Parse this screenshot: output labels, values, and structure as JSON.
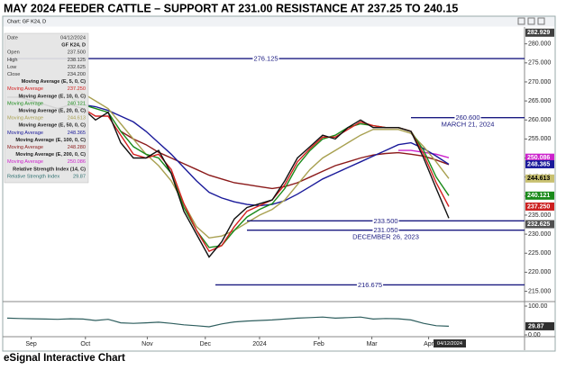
{
  "title": "MAY 2024 FEEDER CATTLE –  SUPPORT AT 231.00  RESISTANCE AT 237.25 TO 240.15",
  "footer": "eSignal Interactive Chart",
  "toolbar": "Chart: GF K24, D",
  "data_window": {
    "rows": [
      {
        "label": "Date",
        "value": "04/12/2024"
      },
      {
        "label": "GF K24, D"
      },
      {
        "label": "Open",
        "value": "237.500"
      },
      {
        "label": "High",
        "value": "238.125"
      },
      {
        "label": "Low",
        "value": "232.625"
      },
      {
        "label": "Close",
        "value": "234.200"
      },
      {
        "label": "Moving Average (E, 5, 0, C)"
      },
      {
        "label": "Moving Average",
        "value": "237.250",
        "color": "#d42020"
      },
      {
        "label": "Moving Average (E, 10, 0, C)"
      },
      {
        "label": "Moving Average",
        "value": "240.121",
        "color": "#1a8a1a"
      },
      {
        "label": "Moving Average (E, 20, 0, C)"
      },
      {
        "label": "Moving Average",
        "value": "244.613",
        "color": "#a8a050"
      },
      {
        "label": "Moving Average (E, 50, 0, C)"
      },
      {
        "label": "Moving Average",
        "value": "248.365",
        "color": "#1a1a9a"
      },
      {
        "label": "Moving Average (E, 100, 0, C)"
      },
      {
        "label": "Moving Average",
        "value": "248.280",
        "color": "#8b1a1a"
      },
      {
        "label": "Moving Average (E, 200, 0, C)"
      },
      {
        "label": "Moving Average",
        "value": "250.086",
        "color": "#cc22cc"
      },
      {
        "label": "Relative Strength Index (14, C)"
      },
      {
        "label": "Relative Strength Index",
        "value": "29.87",
        "color": "#2e7070"
      }
    ]
  },
  "chart_data": {
    "type": "line",
    "xlim": [
      0,
      41
    ],
    "xticks": [
      {
        "value": 1.9,
        "label": "Sep"
      },
      {
        "value": 6.2,
        "label": "Oct"
      },
      {
        "value": 11.1,
        "label": "Nov"
      },
      {
        "value": 15.7,
        "label": "Dec"
      },
      {
        "value": 20,
        "label": "2024"
      },
      {
        "value": 24.7,
        "label": "Feb"
      },
      {
        "value": 28.9,
        "label": "Mar"
      },
      {
        "value": 33.4,
        "label": "Apr"
      }
    ],
    "date_tag": "04/12/2024",
    "ylim": [
      213,
      283
    ],
    "yticks": [
      {
        "value": 215,
        "label": "215.000"
      },
      {
        "value": 220,
        "label": "220.000"
      },
      {
        "value": 225,
        "label": "225.000"
      },
      {
        "value": 230,
        "label": "230.000"
      },
      {
        "value": 235,
        "label": "235.000"
      },
      {
        "value": 240,
        "label": "240.000"
      },
      {
        "value": 245,
        "label": "245.000"
      },
      {
        "value": 250,
        "label": "250.000"
      },
      {
        "value": 255,
        "label": "255.000"
      },
      {
        "value": 260,
        "label": "260.000"
      },
      {
        "value": 265,
        "label": "265.000"
      },
      {
        "value": 270,
        "label": "270.000"
      },
      {
        "value": 275,
        "label": "275.000"
      },
      {
        "value": 280,
        "label": "280.000"
      }
    ],
    "series": [
      {
        "color": "#cc22cc",
        "values": [
          null,
          null,
          null,
          null,
          null,
          null,
          null,
          null,
          null,
          null,
          null,
          null,
          null,
          null,
          null,
          null,
          null,
          null,
          null,
          null,
          null,
          null,
          null,
          null,
          null,
          null,
          null,
          null,
          null,
          null,
          null,
          252,
          252,
          251.5,
          251,
          250.086
        ]
      },
      {
        "color": "#8b1a1a",
        "values": [
          null,
          null,
          null,
          null,
          null,
          null,
          null,
          null,
          null,
          257,
          255,
          253.5,
          251.5,
          250,
          248.5,
          247,
          245.5,
          244.5,
          243.5,
          243,
          242.5,
          242,
          242.5,
          243.5,
          245,
          246.5,
          248,
          249,
          250,
          250.8,
          251.2,
          251.4,
          251,
          250.5,
          249.5,
          248.28
        ]
      },
      {
        "color": "#1a1a9a",
        "values": [
          null,
          null,
          null,
          null,
          null,
          null,
          264,
          263.5,
          262.5,
          261,
          259.5,
          257,
          254,
          251,
          247.5,
          244,
          241,
          239.5,
          238.5,
          237.8,
          237.5,
          237.8,
          238.8,
          240.5,
          242.5,
          244.5,
          246,
          247.5,
          249,
          250.5,
          252,
          253.5,
          254,
          252.5,
          250.5,
          248.365
        ]
      },
      {
        "color": "#a8a050",
        "values": [
          null,
          null,
          null,
          null,
          null,
          269,
          267,
          265,
          263,
          259,
          255,
          251,
          248,
          244,
          238,
          232,
          229,
          229.5,
          231,
          233,
          235,
          236.5,
          239,
          243,
          247,
          250,
          252,
          254,
          256,
          257.5,
          257.5,
          257.5,
          256.5,
          253,
          249,
          244.613
        ]
      },
      {
        "color": "#1a8a1a",
        "values": [
          null,
          null,
          null,
          null,
          null,
          266,
          264,
          263,
          262,
          257,
          253,
          251,
          250,
          246,
          237,
          231,
          226.5,
          227,
          231,
          234.5,
          236.5,
          238,
          242,
          248,
          252,
          255,
          256,
          258,
          259,
          258.5,
          258,
          258,
          257,
          252,
          245,
          240.121
        ]
      },
      {
        "color": "#d42020",
        "values": [
          null,
          null,
          null,
          null,
          null,
          264,
          263,
          261,
          261,
          256,
          251,
          250,
          251,
          247,
          238,
          231,
          225.5,
          227,
          232,
          236,
          237.5,
          239,
          243,
          249,
          252.5,
          255.5,
          255.5,
          257.5,
          259.5,
          258.5,
          258,
          258,
          257,
          251,
          243.5,
          237.25
        ]
      },
      {
        "color": "#111111",
        "values": [
          266,
          266,
          265,
          264,
          263,
          264,
          263,
          260,
          262,
          254,
          250,
          250,
          252,
          246,
          236,
          230,
          224,
          228,
          234,
          237,
          238,
          239,
          244,
          250,
          253,
          256,
          255,
          258,
          260,
          258,
          258,
          258,
          257,
          250,
          242,
          234.2
        ]
      }
    ],
    "price_tags": [
      {
        "value": 282.929,
        "color": "#404040"
      },
      {
        "value": 250.086,
        "color": "#cc22cc"
      },
      {
        "value": 248.365,
        "color": "#1a1a9a"
      },
      {
        "value": 244.613,
        "color": "#c8c070"
      },
      {
        "value": 240.121,
        "color": "#1a8a1a"
      },
      {
        "value": 237.25,
        "label": "237.250",
        "color": "#cc2020"
      },
      {
        "value": 232.625,
        "color": "#505050"
      }
    ],
    "annotations": [
      {
        "value": 276.125,
        "from": 0
      },
      {
        "value": 260.6,
        "label": "260.600",
        "note": "MARCH 21, 2024",
        "from": 32
      },
      {
        "value": 233.5,
        "label": "233.500",
        "from": 19
      },
      {
        "value": 231.05,
        "label": "231.050",
        "note": "DECEMBER 26, 2023",
        "from": 19
      },
      {
        "value": 216.675,
        "from": 16.5
      }
    ],
    "rsi": {
      "color": "#2e5e5e",
      "ylim": [
        0,
        100
      ],
      "ticks": [
        {
          "value": 100,
          "label": "100.00"
        },
        {
          "value": 0,
          "label": "0.00"
        }
      ],
      "tag": {
        "value": 29.87,
        "color": "#303030"
      },
      "values": [
        58,
        57,
        56,
        55,
        54,
        56,
        55,
        50,
        54,
        42,
        40,
        42,
        44,
        40,
        35,
        32,
        28,
        38,
        45,
        48,
        50,
        52,
        55,
        58,
        60,
        62,
        58,
        60,
        62,
        55,
        57,
        56,
        52,
        40,
        32,
        29.87
      ]
    }
  }
}
